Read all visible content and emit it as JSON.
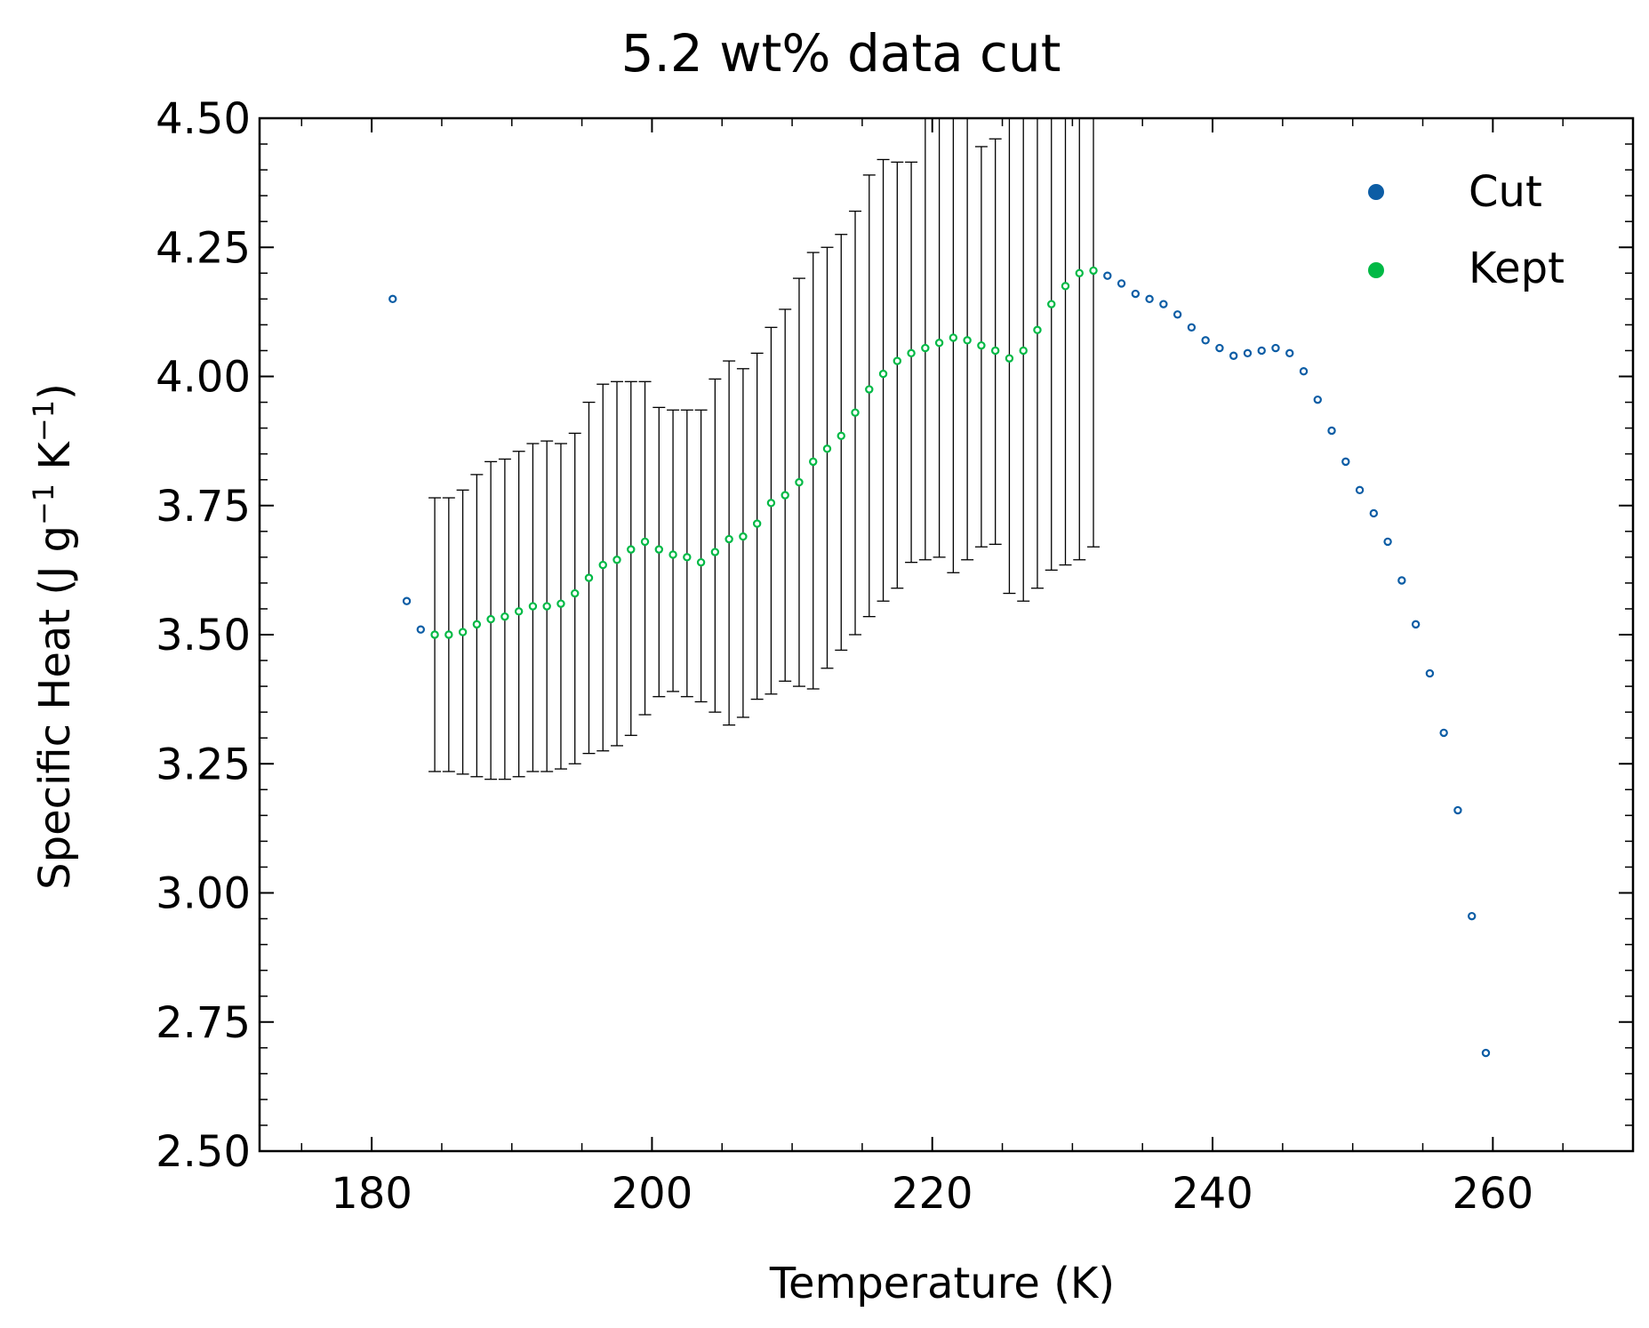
{
  "chart_data": {
    "type": "scatter",
    "title": "5.2 wt% data cut",
    "xlabel": "Temperature (K)",
    "ylabel_parts": {
      "prefix": "Specific Heat (J g",
      "sup1": "−1",
      "middle": " K",
      "sup2": "−1",
      "suffix": ")"
    },
    "xlim": [
      172,
      270
    ],
    "ylim": [
      2.5,
      4.5
    ],
    "x_ticks": [
      180,
      200,
      220,
      240,
      260
    ],
    "x_tick_labels": [
      "180",
      "200",
      "220",
      "240",
      "260"
    ],
    "y_ticks": [
      2.5,
      2.75,
      3.0,
      3.25,
      3.5,
      3.75,
      4.0,
      4.25,
      4.5
    ],
    "y_tick_labels": [
      "2.50",
      "2.75",
      "3.00",
      "3.25",
      "3.50",
      "3.75",
      "4.00",
      "4.25",
      "4.50"
    ],
    "grid": false,
    "legend_position": "top-right",
    "series": [
      {
        "name": "Cut",
        "color": "#0c5da5",
        "x": [
          181.5,
          182.5,
          183.5,
          232.5,
          233.5,
          234.5,
          235.5,
          236.5,
          237.5,
          238.5,
          239.5,
          240.5,
          241.5,
          242.5,
          243.5,
          244.5,
          245.5,
          246.5,
          247.5,
          248.5,
          249.5,
          250.5,
          251.5,
          252.5,
          253.5,
          254.5,
          255.5,
          256.5,
          257.5,
          258.5,
          259.5
        ],
        "y": [
          4.15,
          3.565,
          3.51,
          4.195,
          4.18,
          4.16,
          4.15,
          4.14,
          4.12,
          4.095,
          4.07,
          4.055,
          4.04,
          4.045,
          4.05,
          4.055,
          4.045,
          4.01,
          3.955,
          3.895,
          3.835,
          3.78,
          3.735,
          3.68,
          3.605,
          3.52,
          3.425,
          3.31,
          3.16,
          2.955,
          2.69
        ]
      },
      {
        "name": "Kept",
        "color": "#00b945",
        "x": [
          184.5,
          185.5,
          186.5,
          187.5,
          188.5,
          189.5,
          190.5,
          191.5,
          192.5,
          193.5,
          194.5,
          195.5,
          196.5,
          197.5,
          198.5,
          199.5,
          200.5,
          201.5,
          202.5,
          203.5,
          204.5,
          205.5,
          206.5,
          207.5,
          208.5,
          209.5,
          210.5,
          211.5,
          212.5,
          213.5,
          214.5,
          215.5,
          216.5,
          217.5,
          218.5,
          219.5,
          220.5,
          221.5,
          222.5,
          223.5,
          224.5,
          225.5,
          226.5,
          227.5,
          228.5,
          229.5,
          230.5,
          231.5
        ],
        "y": [
          3.5,
          3.5,
          3.505,
          3.52,
          3.53,
          3.535,
          3.545,
          3.555,
          3.555,
          3.56,
          3.58,
          3.61,
          3.635,
          3.645,
          3.665,
          3.68,
          3.665,
          3.655,
          3.65,
          3.64,
          3.66,
          3.685,
          3.69,
          3.715,
          3.755,
          3.77,
          3.795,
          3.835,
          3.86,
          3.885,
          3.93,
          3.975,
          4.005,
          4.03,
          4.045,
          4.055,
          4.065,
          4.075,
          4.07,
          4.06,
          4.05,
          4.035,
          4.05,
          4.09,
          4.14,
          4.175,
          4.2,
          4.205
        ],
        "error_low": [
          3.235,
          3.235,
          3.23,
          3.225,
          3.22,
          3.22,
          3.225,
          3.235,
          3.235,
          3.24,
          3.25,
          3.27,
          3.275,
          3.285,
          3.305,
          3.345,
          3.38,
          3.39,
          3.38,
          3.37,
          3.35,
          3.325,
          3.34,
          3.375,
          3.385,
          3.41,
          3.4,
          3.395,
          3.435,
          3.47,
          3.5,
          3.535,
          3.565,
          3.59,
          3.64,
          3.645,
          3.65,
          3.62,
          3.645,
          3.67,
          3.675,
          3.58,
          3.565,
          3.59,
          3.625,
          3.635,
          3.645,
          3.67
        ],
        "error_high": [
          3.765,
          3.765,
          3.78,
          3.81,
          3.835,
          3.84,
          3.855,
          3.87,
          3.875,
          3.87,
          3.89,
          3.95,
          3.985,
          3.99,
          3.99,
          3.99,
          3.94,
          3.935,
          3.935,
          3.935,
          3.995,
          4.03,
          4.015,
          4.045,
          4.095,
          4.13,
          4.19,
          4.24,
          4.25,
          4.275,
          4.32,
          4.39,
          4.42,
          4.415,
          4.415,
          4.5,
          4.5,
          4.5,
          4.5,
          4.445,
          4.46,
          4.5,
          4.5,
          4.5,
          4.5,
          4.5,
          4.5,
          4.5
        ]
      }
    ]
  }
}
